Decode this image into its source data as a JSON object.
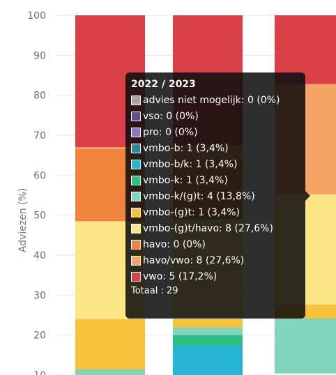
{
  "chart_data": {
    "type": "bar",
    "stacked": true,
    "ylabel": "Adviezen (%)",
    "ylim": [
      10,
      100
    ],
    "yticks": [
      10,
      20,
      30,
      40,
      50,
      60,
      70,
      80,
      90,
      100
    ],
    "grid": true,
    "series_order": [
      "vwo",
      "havo/vwo",
      "havo",
      "vmbo-(g)t/havo",
      "vmbo-(g)t",
      "vmbo-k/(g)t",
      "vmbo-k",
      "vmbo-b/k",
      "vmbo-b",
      "pro",
      "vso",
      "advies niet mogelijk"
    ],
    "colors": {
      "vwo": "#d94147",
      "havo/vwo": "#f4a566",
      "havo": "#f0843c",
      "vmbo-(g)t/havo": "#fbe586",
      "vmbo-(g)t": "#f7c13a",
      "vmbo-k/(g)t": "#7fd6bd",
      "vmbo-k": "#2bbf86",
      "vmbo-b/k": "#26b5d9",
      "vmbo-b": "#2a8a99",
      "pro": "#8a78c4",
      "vso": "#5e4f92",
      "advies niet mogelijk": "#a6a6a6"
    },
    "bars": [
      {
        "visible_segments_from_top": [
          {
            "series": "vwo",
            "lower": 67
          },
          {
            "series": "havo/vwo",
            "lower": 66.5
          },
          {
            "series": "havo",
            "lower": 48.5
          },
          {
            "series": "vmbo-(g)t/havo",
            "lower": 24
          },
          {
            "series": "vmbo-(g)t",
            "lower": 11.5
          },
          {
            "series": "vmbo-k/(g)t",
            "lower": 10
          }
        ]
      },
      {
        "visible_segments_from_top": [
          {
            "series": "vwo",
            "lower": 67.5
          },
          {
            "series": "havo/vwo",
            "lower": 64
          },
          {
            "series": "havo",
            "lower": 49
          },
          {
            "series": "vmbo-(g)t/havo",
            "lower": 24
          },
          {
            "series": "vmbo-(g)t",
            "lower": 22
          },
          {
            "series": "vmbo-k/(g)t",
            "lower": 20
          },
          {
            "series": "vmbo-k",
            "lower": 17.5
          },
          {
            "series": "vmbo-b/k",
            "lower": 10
          }
        ]
      },
      {
        "visible_segments_from_top": [
          {
            "series": "vwo",
            "lower": 82.8
          },
          {
            "series": "havo/vwo",
            "lower": 55.2
          },
          {
            "series": "vmbo-(g)t/havo",
            "lower": 27.6
          },
          {
            "series": "vmbo-(g)t",
            "lower": 24.2
          },
          {
            "series": "vmbo-k/(g)t",
            "lower": 10.4
          }
        ]
      }
    ],
    "tooltip": {
      "title": "2022 / 2023",
      "items": [
        {
          "series": "advies niet mogelijk",
          "text": "advies niet mogelijk: 0 (0%)",
          "count": 0,
          "percent": 0
        },
        {
          "series": "vso",
          "text": "vso: 0 (0%)",
          "count": 0,
          "percent": 0
        },
        {
          "series": "pro",
          "text": "pro: 0 (0%)",
          "count": 0,
          "percent": 0
        },
        {
          "series": "vmbo-b",
          "text": "vmbo-b: 1 (3,4%)",
          "count": 1,
          "percent": 3.4
        },
        {
          "series": "vmbo-b/k",
          "text": "vmbo-b/k: 1 (3,4%)",
          "count": 1,
          "percent": 3.4
        },
        {
          "series": "vmbo-k",
          "text": "vmbo-k: 1 (3,4%)",
          "count": 1,
          "percent": 3.4
        },
        {
          "series": "vmbo-k/(g)t",
          "text": "vmbo-k/(g)t: 4 (13,8%)",
          "count": 4,
          "percent": 13.8
        },
        {
          "series": "vmbo-(g)t",
          "text": "vmbo-(g)t: 1 (3,4%)",
          "count": 1,
          "percent": 3.4
        },
        {
          "series": "vmbo-(g)t/havo",
          "text": "vmbo-(g)t/havo: 8 (27,6%)",
          "count": 8,
          "percent": 27.6
        },
        {
          "series": "havo",
          "text": "havo: 0 (0%)",
          "count": 0,
          "percent": 0
        },
        {
          "series": "havo/vwo",
          "text": "havo/vwo: 8 (27,6%)",
          "count": 8,
          "percent": 27.6
        },
        {
          "series": "vwo",
          "text": "vwo: 5 (17,2%)",
          "count": 5,
          "percent": 17.2
        }
      ],
      "total_text": "Totaal : 29",
      "total": 29
    }
  }
}
